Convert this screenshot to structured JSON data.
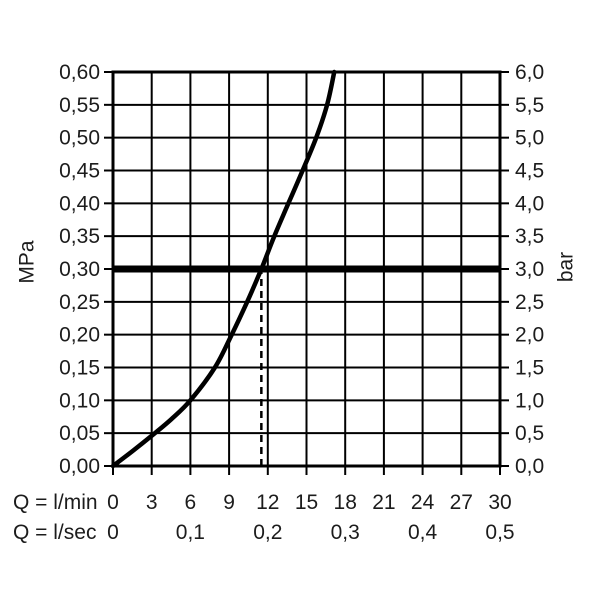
{
  "page": {
    "background": "#ffffff"
  },
  "chart_data": {
    "type": "line",
    "title": "",
    "description": "Flow rate vs pressure performance curve",
    "ylabel_left": "MPa",
    "ylabel_right": "bar",
    "y_axis_left": {
      "unit": "MPa",
      "min": 0,
      "max": 0.6,
      "step": 0.05,
      "tick_labels": [
        "0,60",
        "0,55",
        "0,50",
        "0,45",
        "0,40",
        "0,35",
        "0,30",
        "0,25",
        "0,20",
        "0,15",
        "0,10",
        "0,05",
        "0,00"
      ]
    },
    "y_axis_right": {
      "unit": "bar",
      "min": 0,
      "max": 6.0,
      "step": 0.5,
      "tick_labels": [
        "6,0",
        "5,5",
        "5,0",
        "4,5",
        "4,0",
        "3,5",
        "3,0",
        "2,5",
        "2,0",
        "1,5",
        "1,0",
        "0,5",
        "0,0"
      ]
    },
    "x_range_lmin": [
      0,
      30
    ],
    "x_grid_step_lmin": 3,
    "x_axis_rows": [
      {
        "prefix": "Q = l/min",
        "tick_values_lmin": [
          0,
          3,
          6,
          9,
          12,
          15,
          18,
          21,
          24,
          27,
          30
        ],
        "tick_labels": [
          "0",
          "3",
          "6",
          "9",
          "12",
          "15",
          "18",
          "21",
          "24",
          "27",
          "30"
        ]
      },
      {
        "prefix": "Q = l/sec",
        "tick_values_lmin": [
          0,
          6,
          12,
          18,
          24,
          30
        ],
        "tick_labels": [
          "0",
          "0,1",
          "0,2",
          "0,3",
          "0,4",
          "0,5"
        ]
      }
    ],
    "grid": true,
    "legend": "none",
    "series": [
      {
        "name": "flow-pressure-curve",
        "points_lmin_mpa": [
          [
            0,
            0.0
          ],
          [
            1.6,
            0.024
          ],
          [
            3,
            0.046
          ],
          [
            4.5,
            0.071
          ],
          [
            6,
            0.1
          ],
          [
            7.9,
            0.15
          ],
          [
            9.2,
            0.2
          ],
          [
            10.4,
            0.25
          ],
          [
            11.5,
            0.3
          ],
          [
            12.5,
            0.35
          ],
          [
            13.6,
            0.4
          ],
          [
            14.7,
            0.45
          ],
          [
            15.75,
            0.5
          ],
          [
            16.6,
            0.55
          ],
          [
            17.15,
            0.6
          ]
        ]
      }
    ],
    "reference_line": {
      "mpa": 0.3,
      "bar": 3.0,
      "style": "thick-horizontal"
    },
    "operating_point": {
      "lmin": 11.5,
      "mpa": 0.3,
      "style": "dashed-vertical"
    },
    "colors": {
      "line": "#000000",
      "text": "#1c1c1c",
      "background": "#ffffff"
    }
  }
}
